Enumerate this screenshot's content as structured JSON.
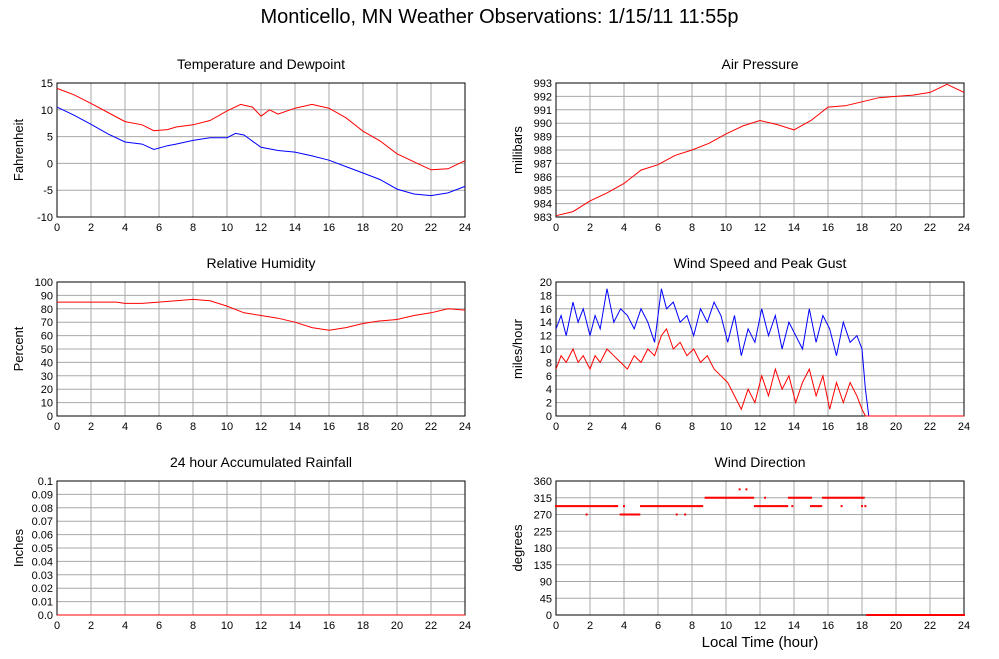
{
  "title": "Monticello, MN Weather Observations: 1/15/11 11:55p",
  "shared_xlabel": "Local Time (hour)",
  "colors": {
    "red": "#ff0000",
    "blue": "#0000ff",
    "grid": "#a8a8a8"
  },
  "chart_data": [
    {
      "id": "temp",
      "type": "line",
      "title": "Temperature and Dewpoint",
      "xlabel": "",
      "ylabel": "Fahrenheit",
      "xlim": [
        0,
        24
      ],
      "ylim": [
        -10,
        15
      ],
      "grid": true,
      "xticks": [
        0,
        2,
        4,
        6,
        8,
        10,
        12,
        14,
        16,
        18,
        20,
        22,
        24
      ],
      "yticks": [
        -10,
        -5,
        0,
        5,
        10,
        15
      ],
      "ytick_labels": [
        "-10",
        "-5",
        "0",
        "5",
        "10",
        "15"
      ],
      "series": [
        {
          "color": "#ff0000",
          "x": [
            0,
            1,
            2,
            3,
            4,
            5,
            5.7,
            6.5,
            7,
            8,
            9,
            10,
            10.8,
            11.5,
            12,
            12.5,
            13,
            14,
            15,
            16,
            17,
            18,
            19,
            20,
            21,
            22,
            23,
            24
          ],
          "y": [
            14,
            12.8,
            11.2,
            9.5,
            7.8,
            7.2,
            6.1,
            6.3,
            6.8,
            7.2,
            8,
            9.8,
            11,
            10.5,
            8.8,
            10,
            9.2,
            10.3,
            11,
            10.3,
            8.5,
            6,
            4.2,
            1.8,
            0.3,
            -1.2,
            -1,
            0.5
          ]
        },
        {
          "color": "#0000ff",
          "x": [
            0,
            1,
            2,
            3,
            4,
            5,
            5.7,
            6.5,
            7,
            8,
            9,
            10,
            10.5,
            11,
            12,
            13,
            14,
            15,
            16,
            17,
            18,
            19,
            20,
            21,
            22,
            23,
            24
          ],
          "y": [
            10.5,
            9,
            7.3,
            5.5,
            4,
            3.6,
            2.6,
            3.3,
            3.6,
            4.3,
            4.8,
            4.8,
            5.6,
            5.3,
            3,
            2.4,
            2.1,
            1.4,
            0.6,
            -0.6,
            -1.8,
            -3,
            -4.8,
            -5.7,
            -6,
            -5.5,
            -4.3
          ]
        }
      ]
    },
    {
      "id": "pressure",
      "type": "line",
      "title": "Air Pressure",
      "xlabel": "",
      "ylabel": "millibars",
      "xlim": [
        0,
        24
      ],
      "ylim": [
        983,
        993
      ],
      "grid": true,
      "xticks": [
        0,
        2,
        4,
        6,
        8,
        10,
        12,
        14,
        16,
        18,
        20,
        22,
        24
      ],
      "yticks": [
        983,
        984,
        985,
        986,
        987,
        988,
        989,
        990,
        991,
        992,
        993
      ],
      "ytick_labels": [
        "983",
        "984",
        "985",
        "986",
        "987",
        "988",
        "989",
        "990",
        "991",
        "992",
        "993"
      ],
      "series": [
        {
          "color": "#ff0000",
          "x": [
            0,
            1,
            2,
            3,
            4,
            5,
            6,
            7,
            8,
            9,
            10,
            11,
            12,
            13,
            14,
            15,
            16,
            17,
            18,
            19,
            20,
            21,
            22,
            23,
            24
          ],
          "y": [
            983.1,
            983.4,
            984.2,
            984.8,
            985.5,
            986.5,
            986.9,
            987.6,
            988,
            988.5,
            989.2,
            989.8,
            990.2,
            989.9,
            989.5,
            990.2,
            991.2,
            991.3,
            991.6,
            991.9,
            992,
            992.1,
            992.3,
            992.9,
            992.3
          ]
        }
      ]
    },
    {
      "id": "humidity",
      "type": "line",
      "title": "Relative Humidity",
      "xlabel": "",
      "ylabel": "Percent",
      "xlim": [
        0,
        24
      ],
      "ylim": [
        0,
        100
      ],
      "grid": true,
      "xticks": [
        0,
        2,
        4,
        6,
        8,
        10,
        12,
        14,
        16,
        18,
        20,
        22,
        24
      ],
      "yticks": [
        0,
        10,
        20,
        30,
        40,
        50,
        60,
        70,
        80,
        90,
        100
      ],
      "ytick_labels": [
        "0",
        "10",
        "20",
        "30",
        "40",
        "50",
        "60",
        "70",
        "80",
        "90",
        "100"
      ],
      "series": [
        {
          "color": "#ff0000",
          "x": [
            0,
            2,
            3.5,
            4,
            5,
            6,
            7,
            8,
            9,
            10,
            11,
            12,
            13,
            14,
            15,
            16,
            17,
            18,
            19,
            20,
            21,
            22,
            23,
            24
          ],
          "y": [
            85,
            85,
            85,
            84,
            84,
            85,
            86,
            87,
            86,
            82,
            77,
            75,
            73,
            70,
            66,
            64,
            66,
            69,
            71,
            72,
            75,
            77,
            80,
            79
          ]
        }
      ]
    },
    {
      "id": "wind",
      "type": "line",
      "title": "Wind Speed and Peak Gust",
      "xlabel": "",
      "ylabel": "miles/hour",
      "xlim": [
        0,
        24
      ],
      "ylim": [
        0,
        20
      ],
      "grid": true,
      "xticks": [
        0,
        2,
        4,
        6,
        8,
        10,
        12,
        14,
        16,
        18,
        20,
        22,
        24
      ],
      "yticks": [
        0,
        2,
        4,
        6,
        8,
        10,
        12,
        14,
        16,
        18,
        20
      ],
      "ytick_labels": [
        "0",
        "2",
        "4",
        "6",
        "8",
        "10",
        "12",
        "14",
        "16",
        "18",
        "20"
      ],
      "series": [
        {
          "color": "#0000ff",
          "x": [
            0,
            0.3,
            0.6,
            1,
            1.3,
            1.6,
            2,
            2.3,
            2.6,
            3,
            3.4,
            3.8,
            4.2,
            4.6,
            5,
            5.4,
            5.8,
            6.2,
            6.5,
            6.9,
            7.3,
            7.7,
            8.1,
            8.5,
            8.9,
            9.3,
            9.7,
            10.1,
            10.5,
            10.9,
            11.3,
            11.7,
            12.1,
            12.5,
            12.9,
            13.3,
            13.7,
            14.1,
            14.5,
            14.9,
            15.3,
            15.7,
            16.1,
            16.5,
            16.9,
            17.3,
            17.7,
            18,
            18.2,
            18.4,
            20,
            24
          ],
          "y": [
            13,
            15,
            12,
            17,
            14,
            16,
            12,
            15,
            13,
            19,
            14,
            16,
            15,
            13,
            16,
            14,
            11,
            19,
            16,
            17,
            14,
            15,
            12,
            16,
            14,
            17,
            15,
            11,
            15,
            9,
            13,
            11,
            16,
            12,
            15,
            10,
            14,
            12,
            10,
            16,
            11,
            15,
            13,
            9,
            14,
            11,
            12,
            10,
            4,
            0,
            0,
            0
          ]
        },
        {
          "color": "#ff0000",
          "x": [
            0,
            0.3,
            0.6,
            1,
            1.3,
            1.6,
            2,
            2.3,
            2.6,
            3,
            3.4,
            3.8,
            4.2,
            4.6,
            5,
            5.4,
            5.8,
            6.2,
            6.5,
            6.9,
            7.3,
            7.7,
            8.1,
            8.5,
            8.9,
            9.3,
            9.7,
            10.1,
            10.5,
            10.9,
            11.3,
            11.7,
            12.1,
            12.5,
            12.9,
            13.3,
            13.7,
            14.1,
            14.5,
            14.9,
            15.3,
            15.7,
            16.1,
            16.5,
            16.9,
            17.3,
            17.7,
            18,
            18.2,
            18.4,
            20,
            24
          ],
          "y": [
            7,
            9,
            8,
            10,
            8,
            9,
            7,
            9,
            8,
            10,
            9,
            8,
            7,
            9,
            8,
            10,
            9,
            12,
            13,
            10,
            11,
            9,
            10,
            8,
            9,
            7,
            6,
            5,
            3,
            1,
            4,
            2,
            6,
            3,
            7,
            4,
            6,
            2,
            5,
            7,
            3,
            6,
            1,
            5,
            2,
            5,
            3,
            1,
            0,
            0,
            0,
            0
          ]
        }
      ]
    },
    {
      "id": "rain",
      "type": "line",
      "title": "24 hour Accumulated Rainfall",
      "xlabel": "",
      "ylabel": "Inches",
      "xlim": [
        0,
        24
      ],
      "ylim": [
        0,
        0.1
      ],
      "grid": true,
      "xticks": [
        0,
        2,
        4,
        6,
        8,
        10,
        12,
        14,
        16,
        18,
        20,
        22,
        24
      ],
      "yticks": [
        0,
        0.01,
        0.02,
        0.03,
        0.04,
        0.05,
        0.06,
        0.07,
        0.08,
        0.09,
        0.1
      ],
      "ytick_labels": [
        "0.0",
        "0.01",
        "0.02",
        "0.03",
        "0.04",
        "0.05",
        "0.06",
        "0.07",
        "0.08",
        "0.09",
        "0.1"
      ],
      "series": [
        {
          "color": "#ff0000",
          "x": [
            0,
            24
          ],
          "y": [
            0,
            0
          ]
        }
      ]
    },
    {
      "id": "direction",
      "type": "scatter",
      "title": "Wind Direction",
      "xlabel": "Local Time (hour)",
      "ylabel": "degrees",
      "xlim": [
        0,
        24
      ],
      "ylim": [
        0,
        360
      ],
      "grid": true,
      "xticks": [
        0,
        2,
        4,
        6,
        8,
        10,
        12,
        14,
        16,
        18,
        20,
        22,
        24
      ],
      "yticks": [
        0,
        45,
        90,
        135,
        180,
        225,
        270,
        315,
        360
      ],
      "ytick_labels": [
        "0",
        "45",
        "90",
        "135",
        "180",
        "225",
        "270",
        "315",
        "360"
      ],
      "series": [
        {
          "color": "#ff0000",
          "segments": [
            {
              "x0": 0,
              "x1": 3.6,
              "y": 292.5,
              "step": 0.1
            },
            {
              "x0": 3.8,
              "x1": 4.9,
              "y": 270,
              "step": 0.1
            },
            {
              "x0": 5.0,
              "x1": 8.6,
              "y": 292.5,
              "step": 0.1
            },
            {
              "x0": 8.8,
              "x1": 11.6,
              "y": 315,
              "step": 0.1
            },
            {
              "x0": 11.7,
              "x1": 13.6,
              "y": 292.5,
              "step": 0.1
            },
            {
              "x0": 13.7,
              "x1": 15.0,
              "y": 315,
              "step": 0.1
            },
            {
              "x0": 15.0,
              "x1": 15.6,
              "y": 292.5,
              "step": 0.1
            },
            {
              "x0": 15.7,
              "x1": 18.1,
              "y": 315,
              "step": 0.1
            },
            {
              "x0": 18.3,
              "x1": 24,
              "y": 0,
              "step": 0.05
            }
          ],
          "extra_points": [
            [
              1.8,
              270
            ],
            [
              3.5,
              292.5
            ],
            [
              4.0,
              292.5
            ],
            [
              7.1,
              270
            ],
            [
              7.6,
              270
            ],
            [
              10.8,
              337.5
            ],
            [
              11.2,
              337.5
            ],
            [
              12.3,
              315
            ],
            [
              13.9,
              292.5
            ],
            [
              16.8,
              292.5
            ],
            [
              18.0,
              292.5
            ],
            [
              18.2,
              292.5
            ]
          ]
        }
      ]
    }
  ]
}
